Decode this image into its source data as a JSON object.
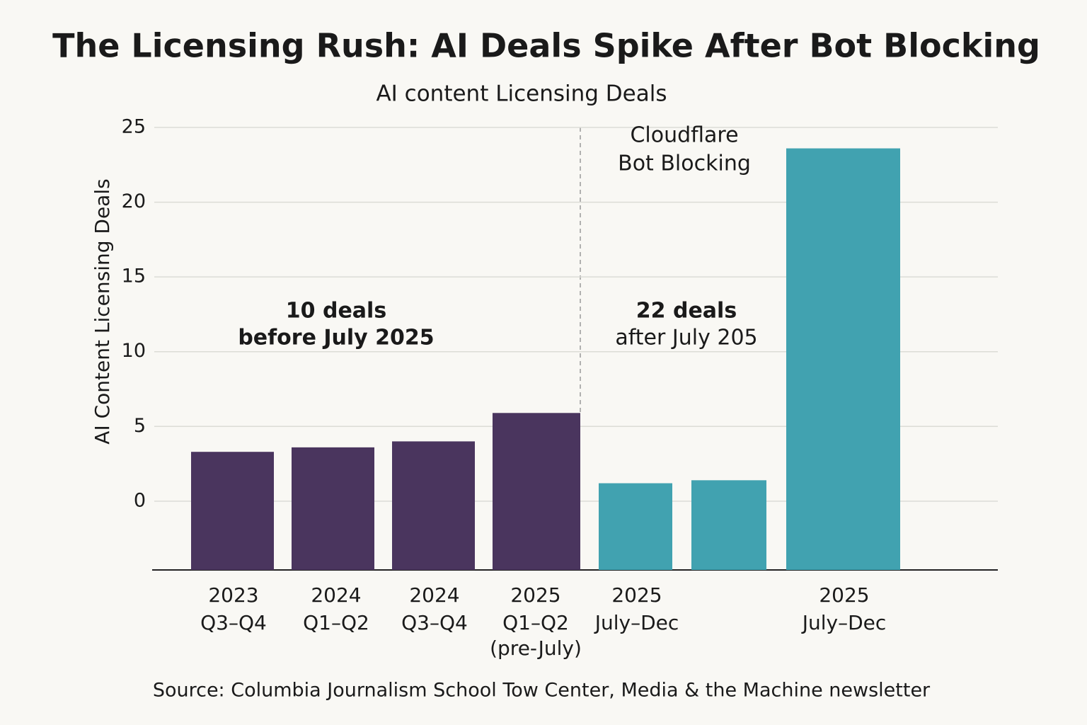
{
  "chart_data": {
    "type": "bar",
    "title": "The Licensing Rush: AI Deals Spike After Bot Blocking",
    "subtitle": "AI content Licensing Deals",
    "y_label": "AI Content Licensing Deals",
    "categories": [
      [
        "2023",
        "Q3–Q4"
      ],
      [
        "2024",
        "Q1–Q2"
      ],
      [
        "2024",
        "Q3–Q4"
      ],
      [
        "2025",
        "Q1–Q2",
        "(pre-July)"
      ],
      [
        "2025",
        "July–Dec"
      ],
      null,
      [
        "2025",
        "July–Dec"
      ]
    ],
    "values": [
      3.3,
      3.6,
      4.0,
      5.9,
      1.2,
      1.4,
      23.6
    ],
    "colors": [
      "#4a355e",
      "#4a355e",
      "#4a355e",
      "#4a355e",
      "#41a2b0",
      "#41a2b0",
      "#41a2b0"
    ],
    "ylim": [
      -4.6,
      25
    ],
    "yticks": [
      0,
      5,
      10,
      15,
      20,
      25
    ],
    "grid": true,
    "annotations": [
      [
        "10 deals",
        "before July 2025"
      ],
      [
        "22 deals",
        "after July 205"
      ]
    ],
    "event_label": [
      "Cloudflare",
      "Bot Blocking"
    ],
    "source": "Source: Columbia Journalism School Tow Center, Media & the Machine newsletter"
  }
}
